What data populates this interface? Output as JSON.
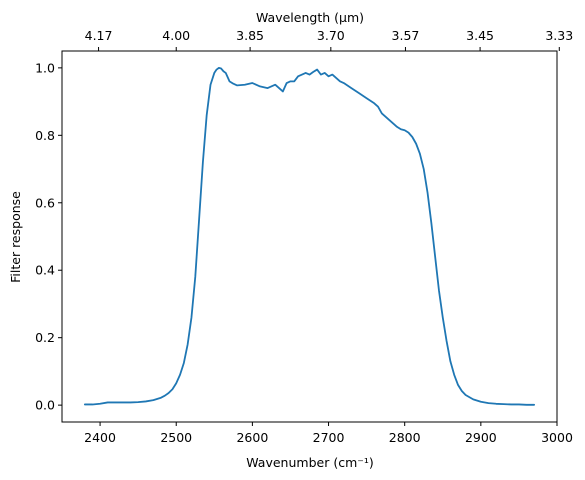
{
  "chart_data": {
    "type": "line",
    "xlabel": "Wavenumber (cm⁻¹)",
    "ylabel": "Filter response",
    "top_xlabel": "Wavelength (μm)",
    "xlim": [
      2350,
      3000
    ],
    "ylim": [
      -0.05,
      1.05
    ],
    "xticks": [
      2400,
      2500,
      2600,
      2700,
      2800,
      2900,
      3000
    ],
    "yticks": [
      0.0,
      0.2,
      0.4,
      0.6,
      0.8,
      1.0
    ],
    "xtick_labels": [
      "2400",
      "2500",
      "2600",
      "2700",
      "2800",
      "2900",
      "3000"
    ],
    "ytick_labels": [
      "0.0",
      "0.2",
      "0.4",
      "0.6",
      "0.8",
      "1.0"
    ],
    "top_ticks": [
      {
        "wavenumber": 2398,
        "label": "4.17"
      },
      {
        "wavenumber": 2500,
        "label": "4.00"
      },
      {
        "wavenumber": 2597,
        "label": "3.85"
      },
      {
        "wavenumber": 2703,
        "label": "3.70"
      },
      {
        "wavenumber": 2801,
        "label": "3.57"
      },
      {
        "wavenumber": 2899,
        "label": "3.45"
      },
      {
        "wavenumber": 3003,
        "label": "3.33"
      }
    ],
    "grid": false,
    "series": [
      {
        "color": "#1f77b4",
        "x": [
          2380,
          2390,
          2400,
          2410,
          2420,
          2430,
          2440,
          2450,
          2460,
          2470,
          2480,
          2485,
          2490,
          2495,
          2500,
          2505,
          2510,
          2515,
          2520,
          2525,
          2530,
          2535,
          2540,
          2545,
          2550,
          2553,
          2556,
          2559,
          2562,
          2565,
          2570,
          2575,
          2580,
          2590,
          2600,
          2610,
          2620,
          2630,
          2640,
          2645,
          2650,
          2655,
          2660,
          2670,
          2675,
          2680,
          2685,
          2690,
          2695,
          2700,
          2705,
          2710,
          2715,
          2720,
          2730,
          2740,
          2750,
          2760,
          2765,
          2770,
          2780,
          2790,
          2795,
          2800,
          2805,
          2810,
          2815,
          2820,
          2825,
          2830,
          2835,
          2840,
          2845,
          2850,
          2855,
          2860,
          2865,
          2870,
          2875,
          2880,
          2890,
          2900,
          2910,
          2920,
          2930,
          2940,
          2950,
          2960,
          2970
        ],
        "y": [
          0.002,
          0.002,
          0.004,
          0.008,
          0.008,
          0.008,
          0.008,
          0.009,
          0.011,
          0.015,
          0.022,
          0.028,
          0.036,
          0.047,
          0.065,
          0.09,
          0.125,
          0.18,
          0.26,
          0.38,
          0.55,
          0.72,
          0.86,
          0.95,
          0.985,
          0.995,
          1.0,
          0.998,
          0.99,
          0.985,
          0.96,
          0.953,
          0.948,
          0.95,
          0.955,
          0.945,
          0.94,
          0.95,
          0.93,
          0.955,
          0.96,
          0.96,
          0.975,
          0.985,
          0.98,
          0.988,
          0.995,
          0.98,
          0.985,
          0.975,
          0.98,
          0.97,
          0.96,
          0.955,
          0.94,
          0.925,
          0.91,
          0.895,
          0.885,
          0.865,
          0.845,
          0.825,
          0.818,
          0.815,
          0.808,
          0.795,
          0.775,
          0.745,
          0.7,
          0.63,
          0.54,
          0.44,
          0.34,
          0.26,
          0.19,
          0.13,
          0.09,
          0.06,
          0.042,
          0.03,
          0.017,
          0.01,
          0.006,
          0.004,
          0.003,
          0.002,
          0.002,
          0.001,
          0.001
        ]
      }
    ]
  }
}
